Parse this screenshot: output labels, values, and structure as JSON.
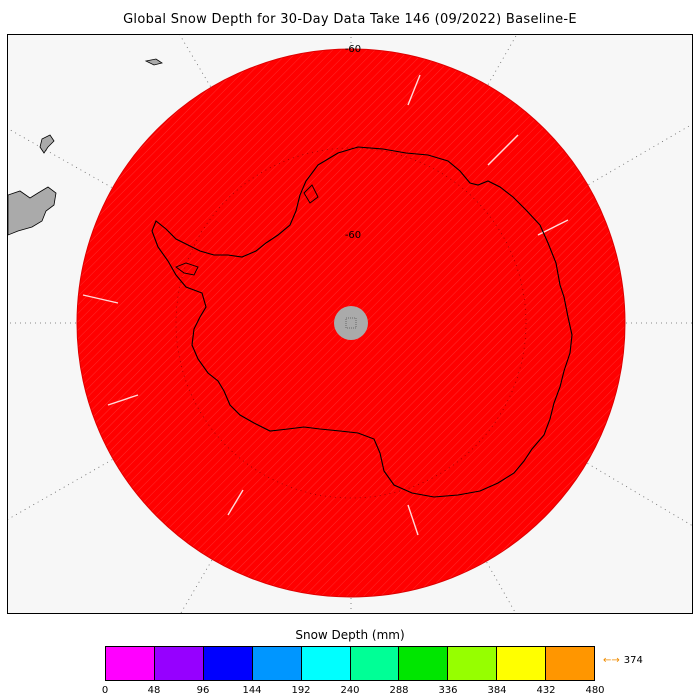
{
  "title": "Global Snow Depth for 30-Day Data Take 146 (09/2022) Baseline-E",
  "map": {
    "projection": "south-polar-stereographic",
    "lat_labels": [
      "-60",
      "-60"
    ],
    "data_color": "#ff0000",
    "land_outline_color": "#000000",
    "no_data_color": "#aaaaaa",
    "grid": "dotted"
  },
  "legend": {
    "title": "Snow Depth (mm)",
    "tick_labels": [
      "0",
      "48",
      "96",
      "144",
      "192",
      "240",
      "288",
      "336",
      "384",
      "432",
      "480"
    ],
    "colors": [
      "#ff00ff",
      "#9600ff",
      "#0000ff",
      "#0096ff",
      "#00ffff",
      "#00ff96",
      "#00e600",
      "#96ff00",
      "#ffff00",
      "#ff9600"
    ],
    "max_arrow": "←→",
    "max_value": "374"
  }
}
